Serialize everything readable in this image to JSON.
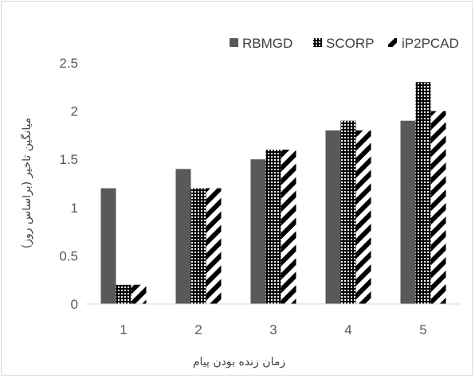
{
  "chart_data": {
    "type": "bar",
    "categories": [
      "1",
      "2",
      "3",
      "4",
      "5"
    ],
    "series": [
      {
        "name": "RBMGD",
        "values": [
          1.2,
          1.4,
          1.5,
          1.8,
          1.9
        ],
        "color": "#595959",
        "pattern": "solid"
      },
      {
        "name": "SCORP",
        "values": [
          0.2,
          1.2,
          1.6,
          1.9,
          2.3
        ],
        "color": "#000000",
        "pattern": "dotted-grid"
      },
      {
        "name": "iP2PCAD",
        "values": [
          0.2,
          1.2,
          1.6,
          1.8,
          2.0
        ],
        "color": "#000000",
        "pattern": "wide-diagonal-stripes"
      }
    ],
    "xlabel": "زمان زنده بودن پیام",
    "ylabel": "میانگین تاخیر (براساس روز)",
    "ylim": [
      0,
      2.5
    ],
    "yticks": [
      "0",
      "0.5",
      "1",
      "1.5",
      "2",
      "2.5"
    ],
    "grid": false,
    "legend_position": "top-right"
  }
}
